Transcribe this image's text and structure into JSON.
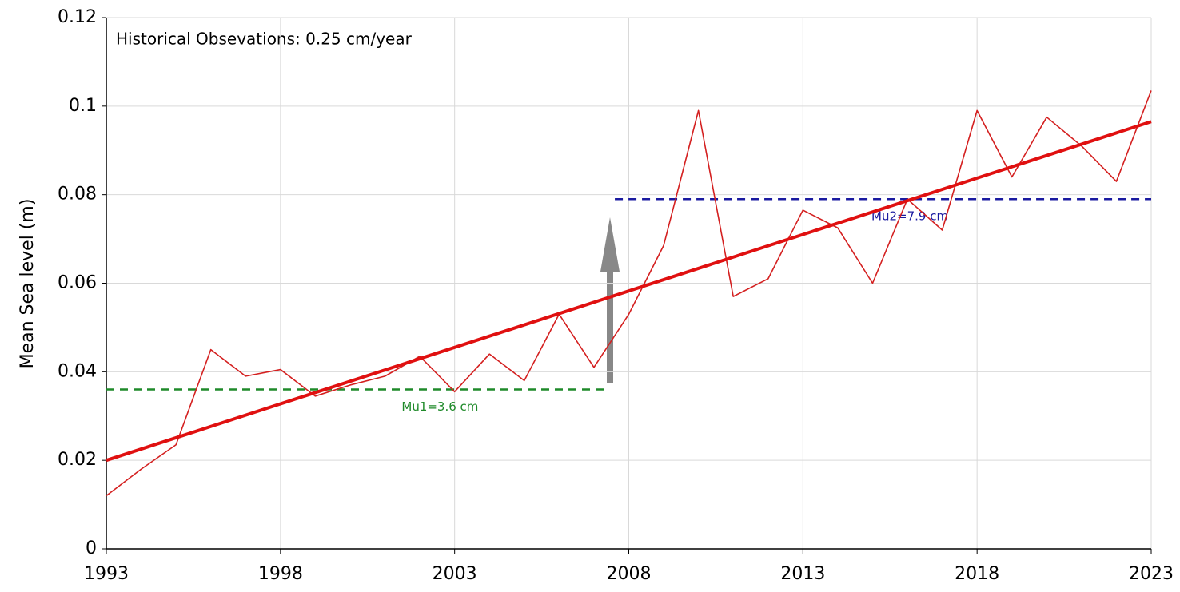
{
  "chart_data": {
    "type": "line",
    "ylabel": "Mean Sea level (m)",
    "x": [
      1993,
      1994,
      1995,
      1996,
      1997,
      1998,
      1999,
      2000,
      2001,
      2002,
      2003,
      2004,
      2005,
      2006,
      2007,
      2008,
      2009,
      2010,
      2011,
      2012,
      2013,
      2014,
      2015,
      2016,
      2017,
      2018,
      2019,
      2020,
      2021,
      2022,
      2023
    ],
    "series": [
      {
        "color": "#d42020",
        "width": 1.6,
        "values": [
          0.012,
          0.018,
          0.0235,
          0.045,
          0.039,
          0.0405,
          0.0345,
          0.037,
          0.039,
          0.0435,
          0.0355,
          0.044,
          0.038,
          0.053,
          0.041,
          0.053,
          0.0685,
          0.099,
          0.057,
          0.061,
          0.0765,
          0.0725,
          0.06,
          0.079,
          0.072,
          0.099,
          0.084,
          0.0975,
          0.091,
          0.083,
          0.1035
        ]
      },
      {
        "color": "#e01010",
        "width": 4,
        "x": [
          1993,
          2023
        ],
        "values": [
          0.02,
          0.0965
        ]
      }
    ],
    "mean_lines": [
      {
        "text": "Mu1=3.6 cm",
        "value": 0.036,
        "x": [
          1993,
          2007.3
        ],
        "color": "#1f8a2a"
      },
      {
        "text": "Mu2=7.9 cm",
        "value": 0.079,
        "x": [
          2007.6,
          2023
        ],
        "color": "#1a1aa0"
      }
    ],
    "annotation": "Historical Obsevations: 0.25 cm/year",
    "xlim": [
      1993,
      2023
    ],
    "xticks": [
      1993,
      1998,
      2003,
      2008,
      2013,
      2018,
      2023
    ],
    "ylim": [
      0,
      0.12
    ],
    "yticks": [
      0,
      0.02,
      0.04,
      0.06,
      0.08,
      0.1,
      0.12
    ],
    "grid": true
  }
}
